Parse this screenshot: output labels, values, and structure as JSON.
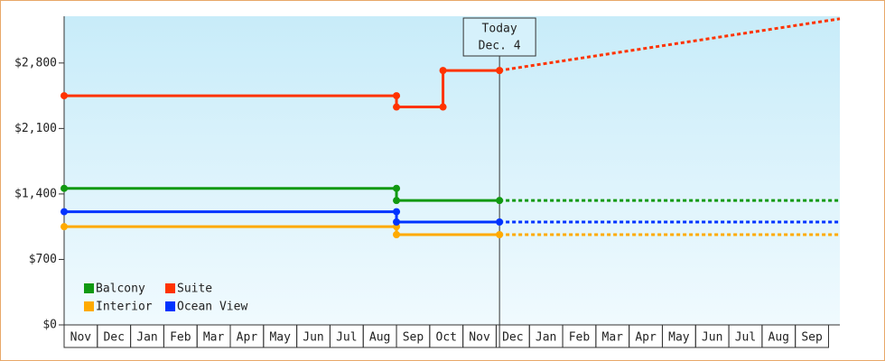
{
  "chart_data": {
    "type": "step-line",
    "categories": [
      "Nov",
      "Dec",
      "Jan",
      "Feb",
      "Mar",
      "Apr",
      "May",
      "Jun",
      "Jul",
      "Aug",
      "Sep",
      "Oct",
      "Nov",
      "Dec",
      "Jan",
      "Feb",
      "Mar",
      "Apr",
      "May",
      "Jun",
      "Jul",
      "Aug",
      "Sep"
    ],
    "xlim": [
      0,
      23.34
    ],
    "ylim": [
      0,
      3300
    ],
    "yticks": [
      {
        "value": 0,
        "label": "$0"
      },
      {
        "value": 700,
        "label": "$700"
      },
      {
        "value": 1400,
        "label": "$1,400"
      },
      {
        "value": 2100,
        "label": "$2,100"
      },
      {
        "value": 2800,
        "label": "$2,800"
      }
    ],
    "annotation": {
      "x": 13.1,
      "lines": [
        "Today",
        "Dec. 4"
      ]
    },
    "series": [
      {
        "name": "Balcony",
        "color": "#119911",
        "x": [
          0,
          10,
          10,
          13.1
        ],
        "values": [
          1460,
          1460,
          1330,
          1330
        ],
        "forecast_x": [
          13.1,
          23.34
        ],
        "forecast_values": [
          1330,
          1330
        ]
      },
      {
        "name": "Suite",
        "color": "#ff3300",
        "x": [
          0,
          10,
          10,
          11.4,
          11.4,
          13.1
        ],
        "values": [
          2450,
          2450,
          2330,
          2330,
          2720,
          2720
        ],
        "forecast_x": [
          13.1,
          23.34
        ],
        "forecast_values": [
          2720,
          3273
        ]
      },
      {
        "name": "Interior",
        "color": "#ffaa00",
        "x": [
          0,
          10,
          10,
          13.1
        ],
        "values": [
          1050,
          1050,
          965,
          965
        ],
        "forecast_x": [
          13.1,
          23.34
        ],
        "forecast_values": [
          965,
          965
        ]
      },
      {
        "name": "Ocean View",
        "color": "#0033ff",
        "x": [
          0,
          10,
          10,
          13.1
        ],
        "values": [
          1210,
          1210,
          1100,
          1100
        ],
        "forecast_x": [
          13.1,
          23.34
        ],
        "forecast_values": [
          1100,
          1100
        ]
      }
    ]
  }
}
